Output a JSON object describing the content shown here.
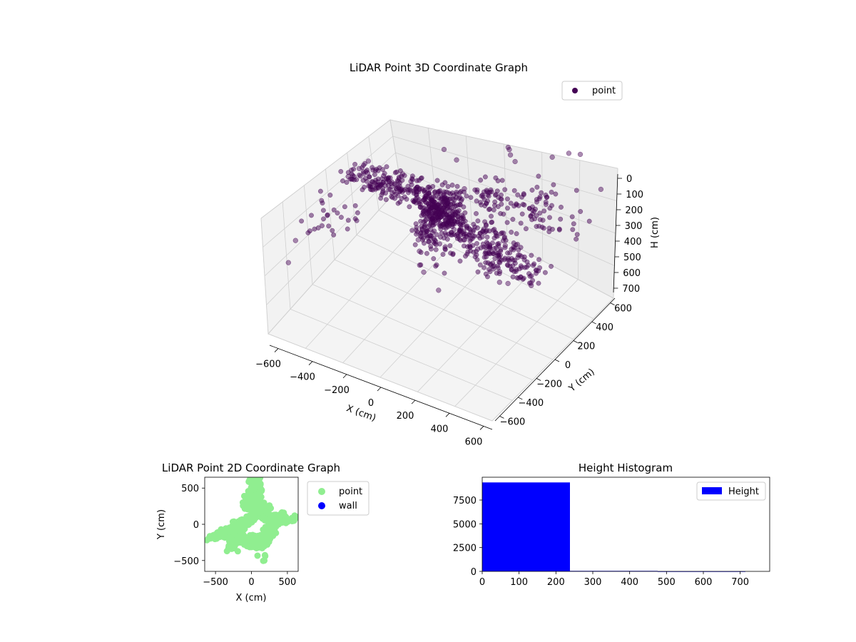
{
  "colors": {
    "point3d": "#440154",
    "point2d": "#90ee90",
    "wall": "#0000ff",
    "histogram": "#0000ff",
    "pane_face": "#f2f2f2",
    "pane_side": "#e6e6e6",
    "grid": "#d0d0d0"
  },
  "chart_data": [
    {
      "type": "scatter",
      "projection": "3d",
      "title": "LiDAR Point 3D Coordinate Graph",
      "xlabel": "X (cm)",
      "ylabel": "Y (cm)",
      "zlabel": "H (cm)",
      "xlim": [
        -650,
        650
      ],
      "ylim": [
        -650,
        650
      ],
      "zlim": [
        750,
        0
      ],
      "zaxis_inverted": true,
      "xticks": [
        "−600",
        "−400",
        "−200",
        "0",
        "200",
        "400",
        "600"
      ],
      "yticks": [
        "−600",
        "−400",
        "−200",
        "0",
        "200",
        "400",
        "600"
      ],
      "zticks": [
        "0",
        "100",
        "200",
        "300",
        "400",
        "500",
        "600",
        "700"
      ],
      "grid": true,
      "legend": {
        "placement": "top-right",
        "entries": [
          "point"
        ]
      },
      "series": [
        {
          "name": "point",
          "alpha": 0.45,
          "x": [
            -10,
            20,
            -40,
            40,
            -70,
            60,
            0,
            -20,
            30,
            -90,
            80,
            -140,
            120,
            -200,
            180,
            -260,
            240,
            -320,
            300,
            -380,
            340,
            -420,
            390,
            -480,
            450,
            -520,
            -540,
            -560,
            500,
            560,
            600,
            630,
            650,
            640,
            120,
            160,
            200,
            260,
            -100,
            -60,
            90,
            210,
            400,
            480,
            470,
            -590,
            -620,
            10,
            -30,
            50
          ],
          "y": [
            0,
            40,
            -30,
            -60,
            50,
            80,
            120,
            -120,
            180,
            20,
            -20,
            60,
            -70,
            90,
            -90,
            140,
            -140,
            160,
            -170,
            100,
            -120,
            60,
            -40,
            80,
            -20,
            160,
            100,
            20,
            -300,
            -320,
            -260,
            -200,
            -240,
            520,
            480,
            420,
            360,
            300,
            200,
            260,
            -360,
            -420,
            440,
            470,
            610,
            -560,
            -430,
            -260,
            -200,
            -330
          ],
          "z": [
            300,
            280,
            340,
            320,
            290,
            270,
            260,
            350,
            240,
            330,
            360,
            310,
            350,
            300,
            340,
            290,
            330,
            280,
            300,
            320,
            310,
            330,
            320,
            290,
            300,
            280,
            300,
            310,
            350,
            320,
            300,
            380,
            330,
            200,
            120,
            80,
            60,
            40,
            50,
            140,
            420,
            450,
            40,
            0,
            100,
            520,
            470,
            380,
            360,
            410
          ]
        }
      ]
    },
    {
      "type": "scatter",
      "title": "LiDAR Point 2D Coordinate Graph",
      "xlabel": "X (cm)",
      "ylabel": "Y (cm)",
      "xlim": [
        -650,
        650
      ],
      "ylim": [
        -650,
        650
      ],
      "xticks": [
        "−500",
        "0",
        "500"
      ],
      "yticks": [
        "−500",
        "0",
        "500"
      ],
      "legend": {
        "placement": "outside-right",
        "entries": [
          "point",
          "wall"
        ]
      },
      "series": [
        {
          "name": "point",
          "x": [
            -600,
            -560,
            -520,
            -480,
            -450,
            -420,
            -380,
            -350,
            -320,
            -300,
            -280,
            -250,
            -220,
            -200,
            -180,
            -150,
            -120,
            -100,
            -80,
            -60,
            -40,
            -20,
            0,
            20,
            40,
            60,
            80,
            100,
            120,
            150,
            180,
            200,
            220,
            250,
            280,
            300,
            330,
            360,
            400,
            450,
            480,
            520,
            560,
            600,
            630,
            0,
            -40,
            40,
            -80,
            80,
            -120,
            60,
            100,
            20,
            -20,
            140,
            0,
            40,
            -60,
            80,
            120,
            180,
            220,
            260,
            300,
            340,
            380,
            420,
            -300,
            -200,
            -100,
            0,
            100,
            200,
            -250,
            -150,
            150,
            250,
            -620,
            180,
            -340,
            120,
            50,
            -10,
            70
          ],
          "y": [
            -200,
            -190,
            -170,
            -180,
            -150,
            -160,
            -140,
            -120,
            -100,
            -80,
            -60,
            -90,
            -50,
            -30,
            -70,
            -20,
            0,
            20,
            40,
            60,
            80,
            100,
            120,
            140,
            160,
            180,
            200,
            220,
            240,
            220,
            200,
            180,
            160,
            140,
            120,
            100,
            80,
            60,
            120,
            160,
            100,
            60,
            80,
            120,
            100,
            400,
            440,
            480,
            360,
            520,
            300,
            560,
            600,
            620,
            580,
            460,
            260,
            340,
            -220,
            -240,
            -260,
            -300,
            -280,
            -200,
            -160,
            -120,
            0,
            40,
            -240,
            -260,
            -280,
            -300,
            -320,
            -280,
            0,
            60,
            300,
            260,
            -220,
            -500,
            -370,
            640,
            660,
            -310,
            -330
          ],
          "color_key": "point2d",
          "dense_cloud": true
        },
        {
          "name": "wall",
          "x": [],
          "y": [],
          "color_key": "wall"
        }
      ]
    },
    {
      "type": "bar",
      "subtype": "histogram",
      "title": "Height Histogram",
      "xlim": [
        0,
        780
      ],
      "ylim": [
        0,
        9900
      ],
      "xticks": [
        "0",
        "100",
        "200",
        "300",
        "400",
        "500",
        "600",
        "700"
      ],
      "yticks": [
        "0",
        "2500",
        "5000",
        "7500"
      ],
      "legend": {
        "placement": "top-right",
        "entries": [
          "Height"
        ]
      },
      "bins": [
        {
          "start": 0,
          "end": 238,
          "count": 9350
        },
        {
          "start": 238,
          "end": 476,
          "count": 55
        },
        {
          "start": 476,
          "end": 714,
          "count": 6
        }
      ],
      "series": [
        {
          "name": "Height"
        }
      ]
    }
  ]
}
